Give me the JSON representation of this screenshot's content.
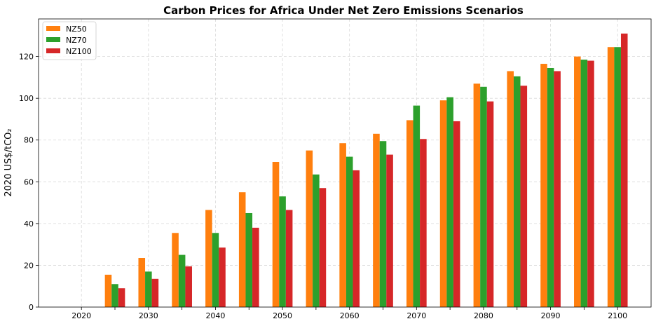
{
  "chart_data": {
    "type": "bar",
    "title": "Carbon Prices for Africa Under Net Zero Emissions Scenarios",
    "ylabel": "2020 US$/tCO₂",
    "xlabel": "",
    "categories": [
      "2020",
      "2025",
      "2030",
      "2035",
      "2040",
      "2045",
      "2050",
      "2055",
      "2060",
      "2065",
      "2070",
      "2075",
      "2080",
      "2085",
      "2090",
      "2095",
      "2100"
    ],
    "x_tick_labels": [
      "2020",
      "2030",
      "2040",
      "2050",
      "2060",
      "2070",
      "2080",
      "2090",
      "2100"
    ],
    "y_ticks": [
      0,
      20,
      40,
      60,
      80,
      100,
      120
    ],
    "ylim": [
      0,
      138
    ],
    "xlim": [
      2013.6,
      2105
    ],
    "grid": true,
    "legend_position": "top-left",
    "series": [
      {
        "name": "NZ50",
        "color": "#ff7f0e",
        "values": [
          0,
          15.5,
          23.5,
          35.5,
          46.5,
          55,
          69.5,
          75,
          78.5,
          83,
          89.5,
          99,
          107,
          113,
          116.5,
          120,
          124.5
        ]
      },
      {
        "name": "NZ70",
        "color": "#2ca02c",
        "values": [
          0,
          11,
          17,
          25,
          35.5,
          45,
          53,
          63.5,
          72,
          79.5,
          96.5,
          100.5,
          105.5,
          110.5,
          114.5,
          118.5,
          124.5
        ]
      },
      {
        "name": "NZ100",
        "color": "#d62728",
        "values": [
          0,
          9,
          13.5,
          19.5,
          28.5,
          38,
          46.5,
          57,
          65.5,
          73,
          80.5,
          89,
          98.5,
          106,
          113,
          118,
          131
        ]
      }
    ]
  }
}
